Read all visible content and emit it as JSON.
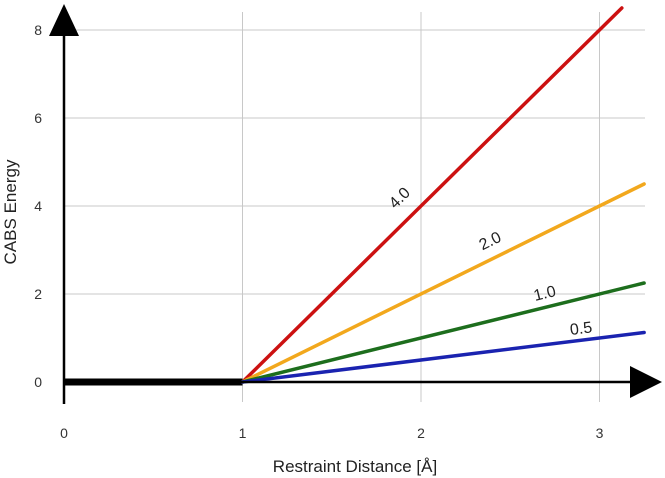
{
  "chart_data": {
    "type": "line",
    "xlabel": "Restraint Distance [Å]",
    "ylabel": "CABS Energy",
    "xlim": [
      0,
      3.25
    ],
    "ylim": [
      0,
      8.3
    ],
    "xticks": [
      "0",
      "1",
      "2",
      "3"
    ],
    "yticks": [
      "0",
      "2",
      "4",
      "6",
      "8"
    ],
    "grid": true,
    "series": [
      {
        "name": "4.0",
        "color": "#cc1111",
        "x": [
          1,
          3.25
        ],
        "y": [
          0,
          9.0
        ]
      },
      {
        "name": "2.0",
        "color": "#f2a81d",
        "x": [
          1,
          3.25
        ],
        "y": [
          0,
          4.5
        ]
      },
      {
        "name": "1.0",
        "color": "#1d6e1d",
        "x": [
          1,
          3.25
        ],
        "y": [
          0,
          2.25
        ]
      },
      {
        "name": "0.5",
        "color": "#1a23b0",
        "x": [
          1,
          3.25
        ],
        "y": [
          0,
          1.125
        ]
      }
    ],
    "baseline": {
      "color": "#000000",
      "x": [
        0,
        1
      ],
      "y": [
        0,
        0
      ]
    },
    "annotations": [
      {
        "text": "4.0",
        "x": 1.9,
        "y": 4.1
      },
      {
        "text": "2.0",
        "x": 2.4,
        "y": 3.1
      },
      {
        "text": "1.0",
        "x": 2.7,
        "y": 1.9
      },
      {
        "text": "0.5",
        "x": 2.9,
        "y": 1.1
      }
    ]
  }
}
